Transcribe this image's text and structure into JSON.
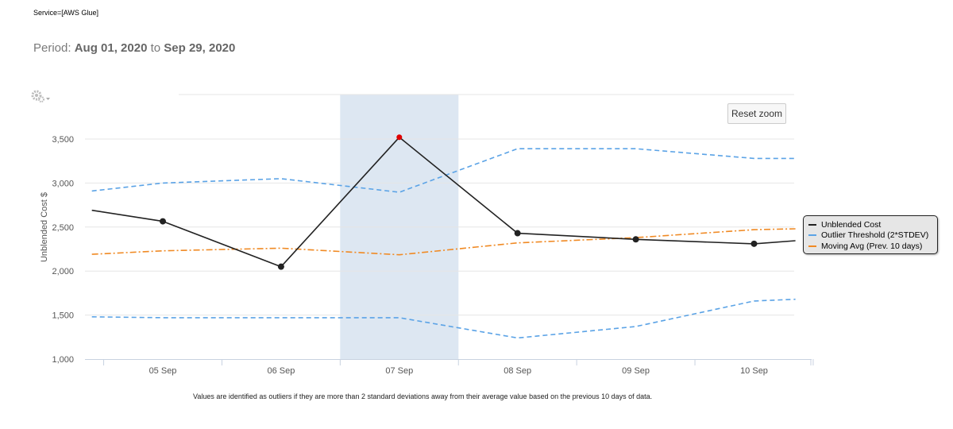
{
  "filter": "Service=[AWS Glue]",
  "period": {
    "prefix": "Period:",
    "start": "Aug 01, 2020",
    "mid": "to",
    "end": "Sep 29, 2020"
  },
  "reset_zoom_label": "Reset zoom",
  "footnote": "Values are identified as outliers if they are more than 2 standard deviations away from their average value based on the previous 10 days of data.",
  "colors": {
    "cost": "#222222",
    "outlier_point": "#e00000",
    "threshold": "#5ba3e6",
    "moving_avg": "#f08a24",
    "band": "#dde7f2"
  },
  "icons": {
    "gear": "gear-icon"
  },
  "chart_data": {
    "type": "line",
    "ylabel": "Unblended Cost $",
    "ylim": [
      1000,
      3500
    ],
    "ytick_labels": [
      "1,000",
      "1,500",
      "2,000",
      "2,500",
      "3,000",
      "3,500"
    ],
    "yticks": [
      1000,
      1500,
      2000,
      2500,
      3000,
      3500
    ],
    "categories": [
      "05 Sep",
      "06 Sep",
      "07 Sep",
      "08 Sep",
      "09 Sep",
      "10 Sep"
    ],
    "xrange": [
      4.4,
      10.35
    ],
    "highlighted_category": "07 Sep",
    "grid": true,
    "legend": "right",
    "series": [
      {
        "name": "Unblended Cost",
        "style": "solid",
        "x": [
          4.4,
          5,
          6,
          7,
          8,
          9,
          10,
          10.35
        ],
        "y": [
          2690,
          2565,
          2050,
          3520,
          2430,
          2360,
          2310,
          2345
        ],
        "markers": [
          false,
          true,
          true,
          true,
          true,
          true,
          true,
          false
        ],
        "outlier_x": 7
      },
      {
        "name": "Outlier Threshold (2*STDEV)",
        "style": "dashed",
        "x": [
          4.4,
          5,
          6,
          7,
          8,
          9,
          10,
          10.35
        ],
        "y": [
          2910,
          3000,
          3050,
          2895,
          3390,
          3390,
          3280,
          3280
        ]
      },
      {
        "name": "",
        "style": "dashed",
        "legend": false,
        "x": [
          4.4,
          5,
          6,
          7,
          8,
          9,
          10,
          10.35
        ],
        "y": [
          1480,
          1470,
          1470,
          1470,
          1240,
          1370,
          1660,
          1680
        ]
      },
      {
        "name": "Moving Avg (Prev. 10 days)",
        "style": "dashdot",
        "x": [
          4.4,
          5,
          6,
          7,
          8,
          9,
          10,
          10.35
        ],
        "y": [
          2190,
          2230,
          2260,
          2185,
          2320,
          2380,
          2470,
          2480
        ]
      }
    ]
  }
}
